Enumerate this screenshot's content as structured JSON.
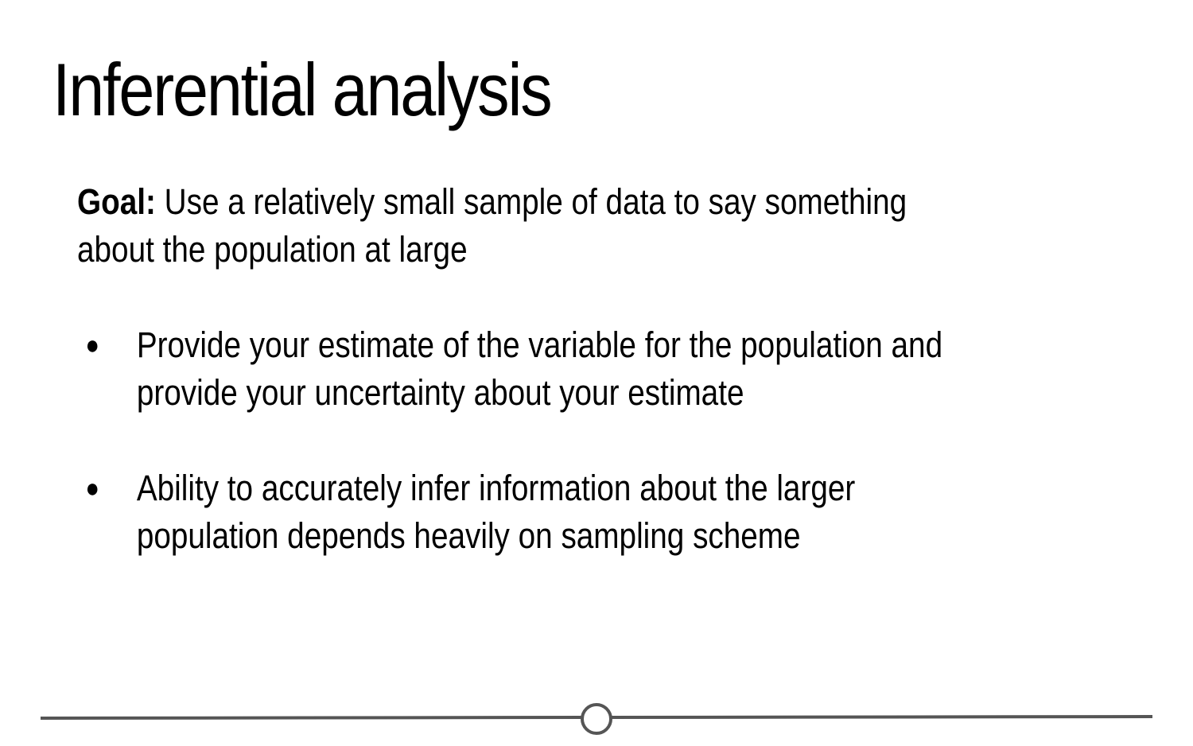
{
  "slide": {
    "title": "Inferential analysis",
    "goal": {
      "label": "Goal:",
      "text_line1": " Use a relatively small sample of data to say something",
      "text_line2": "about the population at large"
    },
    "bullets": [
      {
        "marker": "●",
        "line1": "Provide your estimate of the variable for the population and",
        "line2": "provide your uncertainty about your estimate"
      },
      {
        "marker": "●",
        "line1": "Ability to accurately infer information about the larger",
        "line2": "population depends heavily on sampling scheme"
      }
    ]
  },
  "footer": {
    "icon": "timeline-progress-icon",
    "line_color": "#555555"
  }
}
